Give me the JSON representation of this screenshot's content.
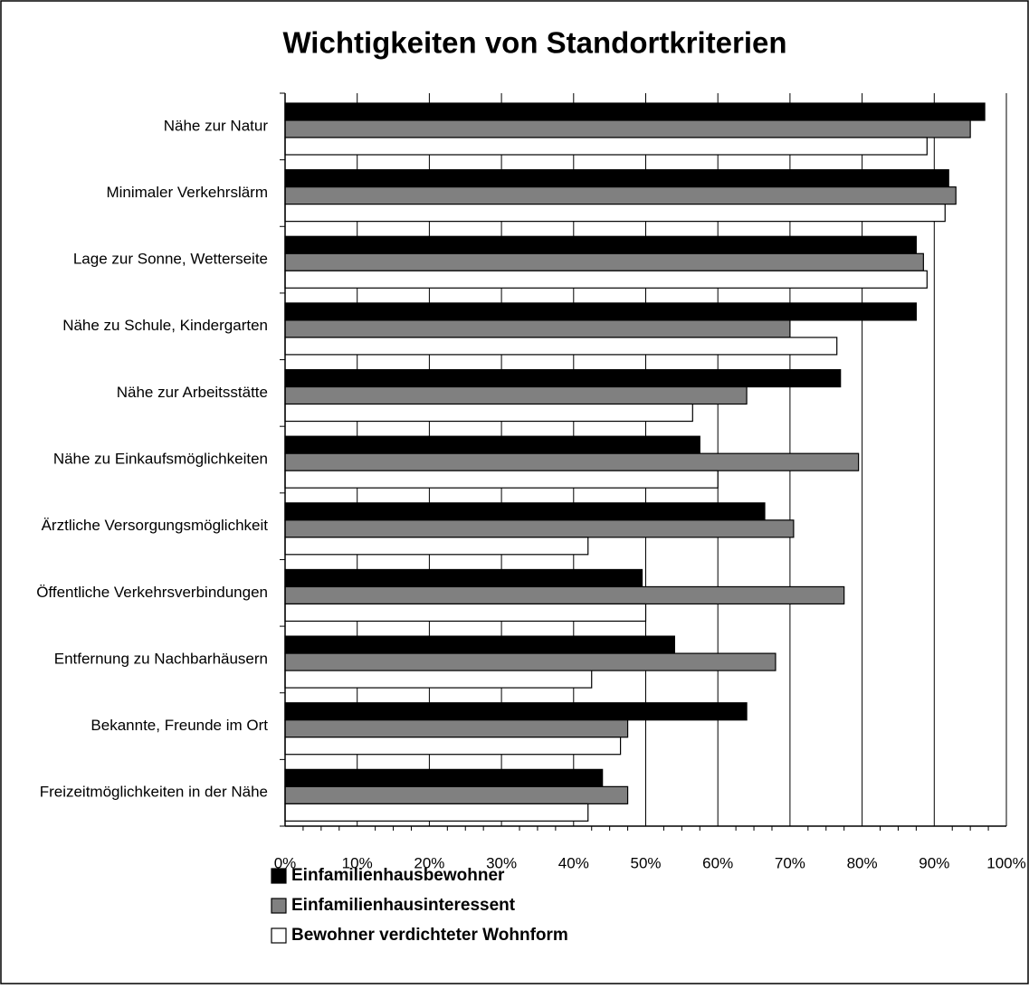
{
  "chart_data": {
    "type": "hbar",
    "title": "Wichtigkeiten von Standortkriterien",
    "categories": [
      "Nähe zur Natur",
      "Minimaler Verkehrslärm",
      "Lage zur Sonne, Wetterseite",
      "Nähe zu Schule, Kindergarten",
      "Nähe zur Arbeitsstätte",
      "Nähe zu Einkaufsmöglichkeiten",
      "Ärztliche Versorgungsmöglichkeit",
      "Öffentliche Verkehrsverbindungen",
      "Entfernung zu Nachbarhäusern",
      "Bekannte, Freunde im Ort",
      "Freizeitmöglichkeiten in der Nähe"
    ],
    "series": [
      {
        "name": "Einfamilienhausbewohner",
        "color": "#000000",
        "values": [
          97,
          92,
          87.5,
          87.5,
          77,
          57.5,
          66.5,
          49.5,
          54,
          64,
          44
        ]
      },
      {
        "name": "Einfamilienhausinteressent",
        "color": "#808080",
        "values": [
          95,
          93,
          88.5,
          70,
          64,
          79.5,
          70.5,
          77.5,
          68,
          47.5,
          47.5
        ]
      },
      {
        "name": "Bewohner verdichteter Wohnform",
        "color": "#ffffff",
        "values": [
          89,
          91.5,
          89,
          76.5,
          56.5,
          60,
          42,
          50,
          42.5,
          46.5,
          42
        ]
      }
    ],
    "xlim": [
      0,
      100
    ],
    "xticks": [
      {
        "value": 0,
        "label": "0%"
      },
      {
        "value": 10,
        "label": "10%"
      },
      {
        "value": 20,
        "label": "20%"
      },
      {
        "value": 30,
        "label": "30%"
      },
      {
        "value": 40,
        "label": "40%"
      },
      {
        "value": 50,
        "label": "50%"
      },
      {
        "value": 60,
        "label": "60%"
      },
      {
        "value": 70,
        "label": "70%"
      },
      {
        "value": 80,
        "label": "80%"
      },
      {
        "value": 90,
        "label": "90%"
      },
      {
        "value": 100,
        "label": "100%"
      }
    ],
    "grid": true
  }
}
